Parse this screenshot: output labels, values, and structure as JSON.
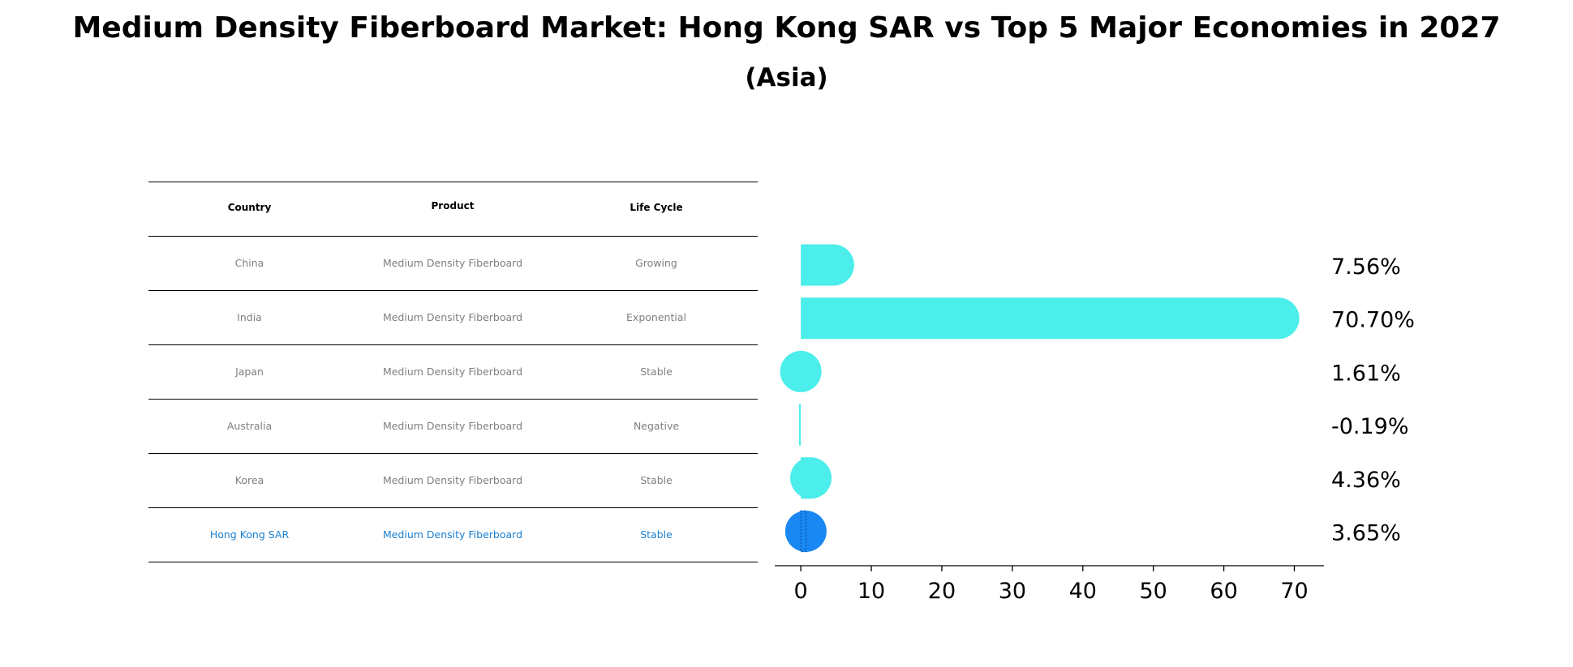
{
  "title": "Medium Density Fiberboard Market: Hong Kong SAR vs Top 5 Major Economies in 2027",
  "subtitle": "(Asia)",
  "table": {
    "headers": [
      "Country",
      "Product",
      "Life Cycle"
    ],
    "rows": [
      [
        "China",
        "Medium Density Fiberboard",
        "Growing"
      ],
      [
        "India",
        "Medium Density Fiberboard",
        "Exponential"
      ],
      [
        "Japan",
        "Medium Density Fiberboard",
        "Stable"
      ],
      [
        "Australia",
        "Medium Density Fiberboard",
        "Negative"
      ],
      [
        "Korea",
        "Medium Density Fiberboard",
        "Stable"
      ],
      [
        "Hong Kong SAR",
        "Medium Density Fiberboard",
        "Stable"
      ]
    ],
    "highlight_color": "#1a7fd0",
    "text_color": "#7f7f7f"
  },
  "chart_data": {
    "type": "bar",
    "orientation": "horizontal",
    "categories": [
      "China",
      "India",
      "Japan",
      "Australia",
      "Korea",
      "Hong Kong SAR"
    ],
    "values": [
      7.56,
      70.7,
      1.61,
      -0.19,
      4.36,
      3.65
    ],
    "value_labels": [
      "7.56%",
      "70.70%",
      "1.61%",
      "-0.19%",
      "4.36%",
      "3.65%"
    ],
    "xlim": [
      -3.7,
      74.2
    ],
    "xticks": [
      0,
      10,
      20,
      30,
      40,
      50,
      60,
      70
    ],
    "xlabel": "",
    "ylabel": "",
    "grid": false,
    "colors": {
      "default": "#4beeea",
      "highlight": "#1a88f2"
    },
    "highlight_category": "Hong Kong SAR"
  }
}
